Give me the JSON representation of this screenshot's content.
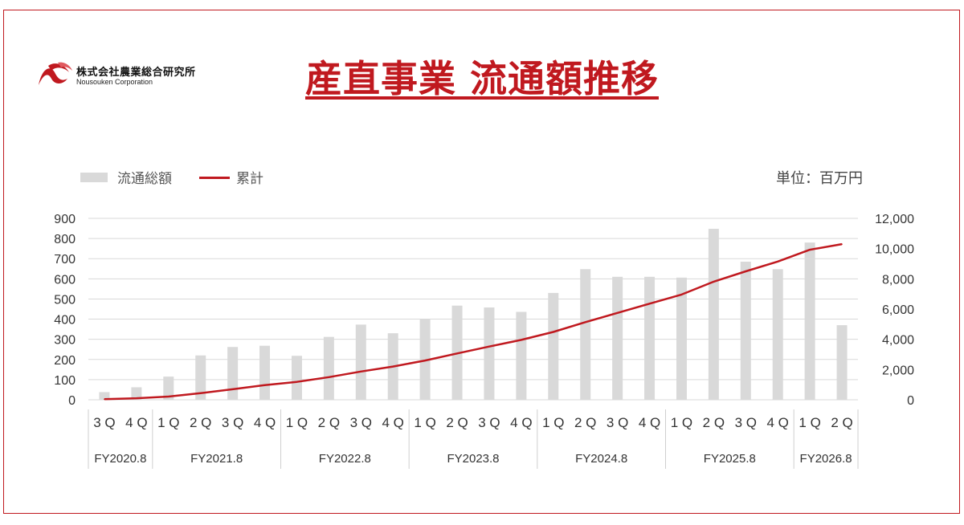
{
  "logo": {
    "company_jp": "株式会社農業総合研究所",
    "company_en": "Nousouken Corporation"
  },
  "title": "産直事業 流通額推移",
  "legend": {
    "bar_label": "流通総額",
    "line_label": "累計"
  },
  "unit_label": "単位：百万円",
  "colors": {
    "accent": "#c0191f",
    "bar": "#d9d9d9",
    "grid": "#d9d9d9",
    "text": "#444444"
  },
  "chart_data": {
    "type": "bar+line",
    "categories": [
      "3Q",
      "4Q",
      "1Q",
      "2Q",
      "3Q",
      "4Q",
      "1Q",
      "2Q",
      "3Q",
      "4Q",
      "1Q",
      "2Q",
      "3Q",
      "4Q",
      "1Q",
      "2Q",
      "3Q",
      "4Q",
      "1Q",
      "2Q",
      "3Q",
      "4Q",
      "1Q",
      "2Q"
    ],
    "category_labels": [
      "3 Q",
      "4 Q",
      "1 Q",
      "2 Q",
      "3 Q",
      "4 Q",
      "1 Q",
      "2 Q",
      "3 Q",
      "4 Q",
      "1 Q",
      "2 Q",
      "3 Q",
      "4 Q",
      "1 Q",
      "2 Q",
      "3 Q",
      "4 Q",
      "1 Q",
      "2 Q",
      "3 Q",
      "4 Q",
      "1 Q",
      "2 Q"
    ],
    "groups": [
      {
        "label": "FY2020.8",
        "count": 2
      },
      {
        "label": "FY2021.8",
        "count": 4
      },
      {
        "label": "FY2022.8",
        "count": 4
      },
      {
        "label": "FY2023.8",
        "count": 4
      },
      {
        "label": "FY2024.8",
        "count": 4
      },
      {
        "label": "FY2025.8",
        "count": 4
      },
      {
        "label": "FY2026.8",
        "count": 2
      }
    ],
    "series": [
      {
        "name": "流通総額",
        "type": "bar",
        "axis": "left",
        "values": [
          38,
          62,
          115,
          220,
          262,
          268,
          218,
          312,
          373,
          330,
          400,
          467,
          458,
          436,
          530,
          648,
          610,
          610,
          606,
          848,
          685,
          648,
          780,
          370
        ]
      },
      {
        "name": "累計",
        "type": "line",
        "axis": "right",
        "values": [
          38,
          100,
          215,
          435,
          697,
          965,
          1183,
          1495,
          1868,
          2198,
          2598,
          3065,
          3523,
          3959,
          4489,
          5137,
          5747,
          6357,
          6963,
          7811,
          8496,
          9144,
          9924,
          10294
        ]
      }
    ],
    "y_left": {
      "min": 0,
      "max": 900,
      "ticks": [
        0,
        100,
        200,
        300,
        400,
        500,
        600,
        700,
        800,
        900
      ],
      "tick_labels": [
        "0",
        "100",
        "200",
        "300",
        "400",
        "500",
        "600",
        "700",
        "800",
        "900"
      ]
    },
    "y_right": {
      "min": 0,
      "max": 12000,
      "ticks": [
        0,
        2000,
        4000,
        6000,
        8000,
        10000,
        12000
      ],
      "tick_labels": [
        "0",
        "2,000",
        "4,000",
        "6,000",
        "8,000",
        "10,000",
        "12,000"
      ]
    },
    "grid": true,
    "legend_position": "top-left"
  }
}
